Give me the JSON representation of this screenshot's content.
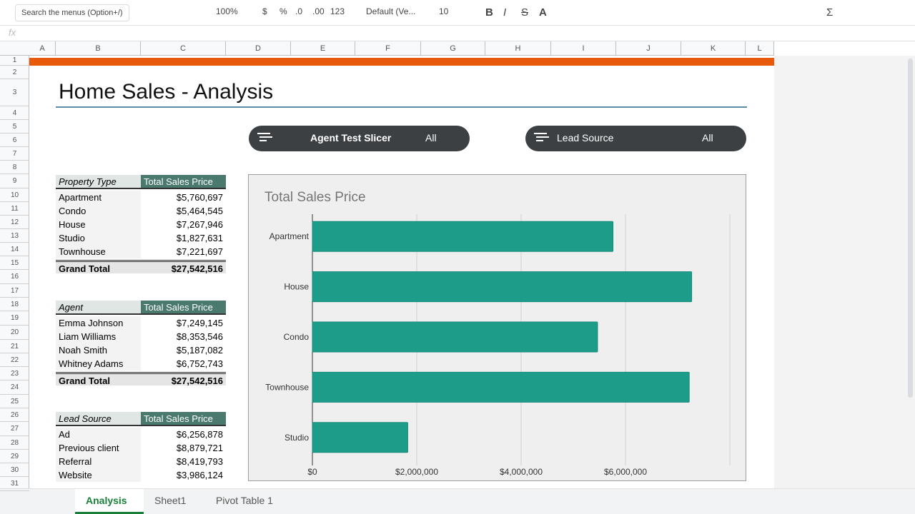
{
  "toolbar": {
    "search": "Search the menus (Option+/)",
    "items": [
      "100%",
      "$",
      "%",
      ".0",
      ".00",
      "123",
      "Default (Ve...",
      "10",
      "B",
      "I",
      "S",
      "A",
      "Σ"
    ]
  },
  "formula_bar": {
    "label": "fx"
  },
  "columns": [
    "A",
    "B",
    "C",
    "D",
    "E",
    "F",
    "G",
    "H",
    "I",
    "J",
    "K",
    "L"
  ],
  "rows": [
    1,
    2,
    3,
    4,
    5,
    6,
    7,
    8,
    9,
    10,
    11,
    12,
    13,
    14,
    15,
    16,
    17,
    18,
    19,
    20,
    21,
    22,
    23,
    24,
    25,
    26,
    27,
    28,
    29,
    30,
    31
  ],
  "sheet": {
    "title": "Home Sales - Analysis",
    "slicers": [
      {
        "label": "Agent Test Slicer",
        "value": "All"
      },
      {
        "label": "Lead Source",
        "value": "All"
      }
    ],
    "tables": [
      {
        "header": [
          "Property Type",
          "Total Sales Price"
        ],
        "rows": [
          [
            "Apartment",
            "$5,760,697"
          ],
          [
            "Condo",
            "$5,464,545"
          ],
          [
            "House",
            "$7,267,946"
          ],
          [
            "Studio",
            "$1,827,631"
          ],
          [
            "Townhouse",
            "$7,221,697"
          ]
        ],
        "total": [
          "Grand Total",
          "$27,542,516"
        ]
      },
      {
        "header": [
          "Agent",
          "Total Sales Price"
        ],
        "rows": [
          [
            "Emma Johnson",
            "$7,249,145"
          ],
          [
            "Liam Williams",
            "$8,353,546"
          ],
          [
            "Noah Smith",
            "$5,187,082"
          ],
          [
            "Whitney Adams",
            "$6,752,743"
          ]
        ],
        "total": [
          "Grand Total",
          "$27,542,516"
        ]
      },
      {
        "header": [
          "Lead Source",
          "Total Sales Price"
        ],
        "rows": [
          [
            "Ad",
            "$6,256,878"
          ],
          [
            "Previous client",
            "$8,879,721"
          ],
          [
            "Referral",
            "$8,419,793"
          ],
          [
            "Website",
            "$3,986,124"
          ]
        ]
      }
    ]
  },
  "chart_data": {
    "type": "bar",
    "title": "Total Sales Price",
    "categories": [
      "Apartment",
      "House",
      "Condo",
      "Townhouse",
      "Studio"
    ],
    "values": [
      5760697,
      7267946,
      5464545,
      7221697,
      1827631
    ],
    "color": "#1e9c8a",
    "xlim": [
      0,
      8000000
    ],
    "xticks": [
      {
        "value": 0,
        "label": "$0"
      },
      {
        "value": 2000000,
        "label": "$2,000,000"
      },
      {
        "value": 4000000,
        "label": "$4,000,000"
      },
      {
        "value": 6000000,
        "label": "$6,000,000"
      }
    ],
    "grid": true
  },
  "tabs": [
    "Analysis",
    "Sheet1",
    "Pivot Table 1"
  ]
}
